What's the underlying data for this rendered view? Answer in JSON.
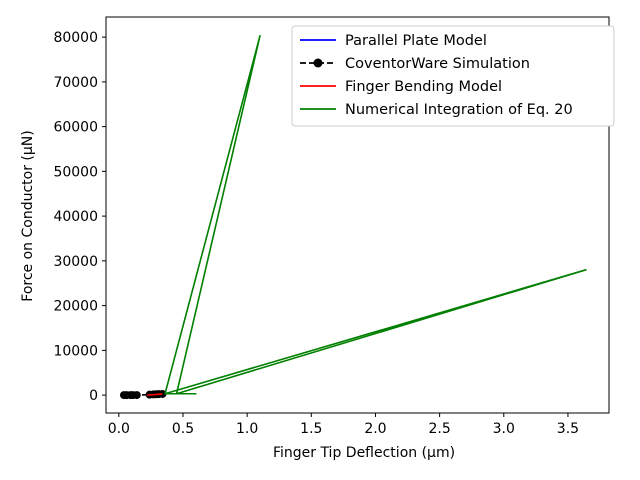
{
  "chart_data": {
    "type": "line",
    "xlabel": "Finger Tip Deflection (μm)",
    "ylabel": "Force on Conductor (μN)",
    "xlim": [
      -0.1,
      3.82
    ],
    "ylim": [
      -4000,
      84500
    ],
    "xticks": [
      0.0,
      0.5,
      1.0,
      1.5,
      2.0,
      2.5,
      3.0,
      3.5
    ],
    "xtick_labels": [
      "0.0",
      "0.5",
      "1.0",
      "1.5",
      "2.0",
      "2.5",
      "3.0",
      "3.5"
    ],
    "yticks": [
      0,
      10000,
      20000,
      30000,
      40000,
      50000,
      60000,
      70000,
      80000
    ],
    "ytick_labels": [
      "0",
      "10000",
      "20000",
      "30000",
      "40000",
      "50000",
      "60000",
      "70000",
      "80000"
    ],
    "grid": false,
    "legend_position": "top-right",
    "series": [
      {
        "name": "Parallel Plate Model",
        "color": "#0000ff",
        "style": "solid",
        "marker": "none",
        "x": [
          0.03,
          0.06,
          0.09,
          0.12,
          0.15
        ],
        "y": [
          0,
          20,
          60,
          120,
          200
        ]
      },
      {
        "name": "CoventorWare Simulation",
        "color": "#000000",
        "style": "dashed",
        "marker": "circle",
        "x": [
          0.04,
          0.06,
          0.09,
          0.11,
          0.14,
          0.24,
          0.27,
          0.29,
          0.31,
          0.34
        ],
        "y": [
          0,
          0,
          0,
          0,
          0,
          100,
          150,
          180,
          220,
          260
        ]
      },
      {
        "name": "Finger Bending Model",
        "color": "#ff0000",
        "style": "solid",
        "marker": "none",
        "x": [
          0.22,
          0.26,
          0.3,
          0.34
        ],
        "y": [
          0,
          80,
          160,
          250
        ]
      },
      {
        "name": "Numerical Integration of Eq. 20",
        "color": "#008000",
        "style": "solid",
        "marker": "none",
        "x": [
          0.36,
          1.1,
          0.45,
          0.6,
          0.36,
          3.64,
          0.45
        ],
        "y": [
          300,
          80300,
          300,
          300,
          300,
          28000,
          300
        ]
      }
    ]
  }
}
